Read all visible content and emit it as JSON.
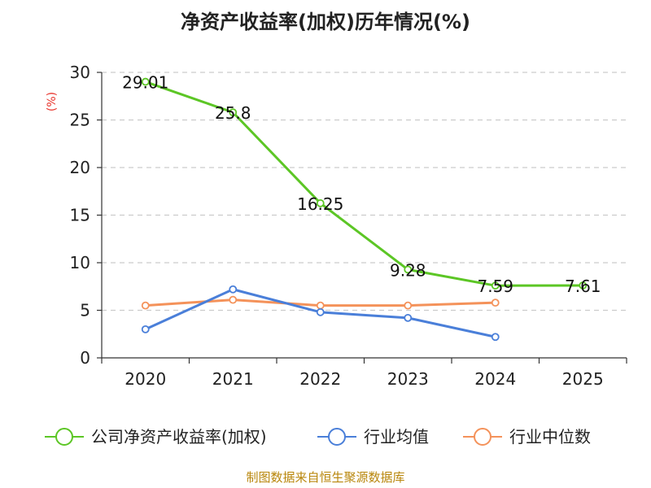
{
  "chart_data": {
    "type": "line",
    "title": "净资产收益率(加权)历年情况(%)",
    "ylabel": "(%)",
    "xlabel": "",
    "categories": [
      "2020",
      "2021",
      "2022",
      "2023",
      "2024",
      "2025"
    ],
    "ylim": [
      0,
      30
    ],
    "yticks": [
      0,
      5,
      10,
      15,
      20,
      25,
      30
    ],
    "grid": true,
    "legend_position": "bottom",
    "series": [
      {
        "name": "公司净资产收益率(加权)",
        "color": "#5cc625",
        "values": [
          29.01,
          25.8,
          16.25,
          9.28,
          7.59,
          7.61
        ],
        "labels": [
          "29.01",
          "25.8",
          "16.25",
          "9.28",
          "7.59",
          "7.61"
        ],
        "show_labels": true
      },
      {
        "name": "行业均值",
        "color": "#4a7fd9",
        "values": [
          3.0,
          7.2,
          4.8,
          4.2,
          2.2,
          null
        ],
        "show_labels": false
      },
      {
        "name": "行业中位数",
        "color": "#f4925a",
        "values": [
          5.5,
          6.1,
          5.5,
          5.5,
          5.8,
          null
        ],
        "show_labels": false
      }
    ]
  },
  "source": "制图数据来自恒生聚源数据库"
}
